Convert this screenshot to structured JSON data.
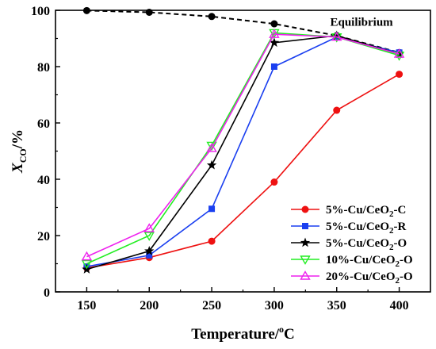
{
  "chart_data": {
    "type": "line",
    "x": [
      150,
      200,
      250,
      300,
      350,
      400
    ],
    "xlim": [
      125,
      425
    ],
    "ylim": [
      0,
      100
    ],
    "xticks": [
      150,
      200,
      250,
      300,
      350,
      400
    ],
    "yticks": [
      0,
      20,
      40,
      60,
      80,
      100
    ],
    "xlabel": {
      "main": "Temperature/",
      "sup": "o",
      "unit": "C"
    },
    "ylabel": {
      "main": "X",
      "sub": "CO",
      "unit": "/%"
    },
    "grid": false,
    "legend": "bottom-right",
    "annotation": {
      "text": "Equilibrium",
      "x": 395,
      "y": 94.5
    },
    "equilibrium": {
      "values": [
        99.9,
        99.3,
        97.8,
        95.2,
        91.0,
        85.0
      ],
      "color": "#000000",
      "dash": true
    },
    "series": [
      {
        "name": "5%-Cu/CeO2-C",
        "color": "#ee1111",
        "marker": "circle",
        "values": [
          8.5,
          12.2,
          18.0,
          39.0,
          64.5,
          77.3
        ]
      },
      {
        "name": "5%-Cu/CeO2-R",
        "color": "#1a3ff0",
        "marker": "square",
        "values": [
          9.0,
          13.0,
          29.5,
          80.0,
          90.5,
          85.0
        ]
      },
      {
        "name": "5%-Cu/CeO2-O",
        "color": "#000000",
        "marker": "star",
        "values": [
          8.0,
          14.5,
          45.0,
          88.5,
          91.0,
          84.5
        ]
      },
      {
        "name": "10%-Cu/CeO2-O",
        "color": "#22ee22",
        "marker": "triangle-down",
        "values": [
          10.0,
          20.0,
          52.0,
          92.0,
          90.5,
          84.0
        ]
      },
      {
        "name": "20%-Cu/CeO2-O",
        "color": "#ee22ee",
        "marker": "triangle-up",
        "values": [
          12.5,
          22.5,
          51.0,
          91.5,
          90.5,
          84.5
        ]
      }
    ]
  }
}
